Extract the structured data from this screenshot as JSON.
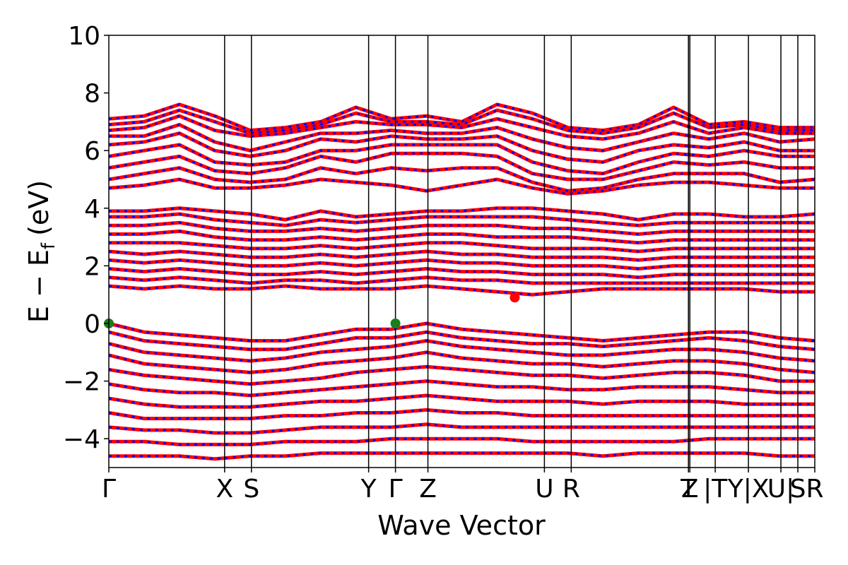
{
  "chart_data": {
    "type": "line",
    "title": "",
    "xlabel": "Wave Vector",
    "ylabel": "E  −  E",
    "ylabel_sub": "f",
    "ylabel_unit": "(eV)",
    "ylim": [
      -5,
      10
    ],
    "yticks": [
      {
        "value": -4,
        "label": "−4"
      },
      {
        "value": -2,
        "label": "−2"
      },
      {
        "value": 0,
        "label": "0"
      },
      {
        "value": 2,
        "label": "2"
      },
      {
        "value": 4,
        "label": "4"
      },
      {
        "value": 6,
        "label": "6"
      },
      {
        "value": 8,
        "label": "8"
      },
      {
        "value": 10,
        "label": "10"
      }
    ],
    "xlim": [
      0,
      1
    ],
    "kpoints": [
      {
        "label": "Γ",
        "x": 0.0
      },
      {
        "label": "X",
        "x": 0.164
      },
      {
        "label": "S",
        "x": 0.202
      },
      {
        "label": "Y",
        "x": 0.368
      },
      {
        "label": "Γ",
        "x": 0.406
      },
      {
        "label": "Z",
        "x": 0.452
      },
      {
        "label": "U",
        "x": 0.617
      },
      {
        "label": "R",
        "x": 0.655
      },
      {
        "label": "T",
        "x": 0.821
      },
      {
        "label": "Z",
        "x": 0.823
      },
      {
        "label": "|T",
        "x": 0.859
      },
      {
        "label": "Y|X",
        "x": 0.906
      },
      {
        "label": "U|",
        "x": 0.952
      },
      {
        "label": "S",
        "x": 0.976
      },
      {
        "label": "R",
        "x": 1.0
      }
    ],
    "series_colors": {
      "spin_up": "#ff0000",
      "spin_down": "#0000ff"
    },
    "markers": [
      {
        "x": 0.0,
        "y": 0.0,
        "color": "#1a7f1a"
      },
      {
        "x": 0.406,
        "y": 0.0,
        "color": "#1a7f1a"
      },
      {
        "x": 0.575,
        "y": 0.9,
        "color": "#ff0000"
      }
    ],
    "conduction_bands": [
      [
        7.1,
        7.2,
        7.6,
        7.2,
        6.7,
        6.8,
        7.0,
        7.5,
        7.1,
        7.2,
        7.0,
        7.6,
        7.3,
        6.8,
        6.7,
        6.9,
        7.5,
        6.9,
        7.0,
        6.8,
        6.8
      ],
      [
        6.9,
        7.0,
        7.4,
        7.0,
        6.6,
        6.7,
        6.9,
        7.3,
        7.0,
        7.0,
        6.9,
        7.4,
        7.1,
        6.7,
        6.6,
        6.8,
        7.3,
        6.8,
        6.9,
        6.7,
        6.7
      ],
      [
        6.7,
        6.8,
        7.2,
        6.7,
        6.5,
        6.6,
        6.8,
        7.0,
        6.9,
        6.9,
        6.8,
        7.1,
        6.8,
        6.5,
        6.4,
        6.6,
        7.0,
        6.6,
        6.8,
        6.6,
        6.6
      ],
      [
        6.5,
        6.5,
        6.9,
        6.3,
        6.0,
        6.3,
        6.6,
        6.6,
        6.7,
        6.6,
        6.6,
        6.8,
        6.4,
        6.1,
        6.0,
        6.3,
        6.6,
        6.4,
        6.6,
        6.3,
        6.4
      ],
      [
        6.2,
        6.3,
        6.6,
        6.0,
        5.8,
        6.0,
        6.4,
        6.3,
        6.5,
        6.4,
        6.4,
        6.5,
        6.0,
        5.7,
        5.6,
        6.0,
        6.2,
        6.1,
        6.3,
        6.0,
        6.0
      ],
      [
        5.8,
        6.0,
        6.2,
        5.6,
        5.5,
        5.6,
        6.0,
        6.0,
        6.2,
        6.2,
        6.2,
        6.2,
        5.6,
        5.3,
        5.2,
        5.6,
        5.9,
        5.8,
        6.0,
        5.8,
        5.8
      ],
      [
        5.4,
        5.6,
        5.8,
        5.3,
        5.2,
        5.4,
        5.8,
        5.6,
        5.9,
        5.9,
        5.9,
        5.8,
        5.2,
        5.0,
        5.0,
        5.3,
        5.6,
        5.5,
        5.6,
        5.4,
        5.4
      ],
      [
        5.0,
        5.2,
        5.4,
        5.0,
        4.9,
        5.0,
        5.4,
        5.2,
        5.4,
        5.3,
        5.4,
        5.4,
        4.9,
        4.6,
        4.7,
        5.0,
        5.2,
        5.2,
        5.2,
        4.9,
        5.0
      ],
      [
        4.7,
        4.8,
        5.0,
        4.7,
        4.7,
        4.8,
        5.0,
        4.9,
        4.8,
        4.6,
        4.8,
        5.0,
        4.7,
        4.5,
        4.6,
        4.8,
        4.9,
        4.9,
        4.8,
        4.7,
        4.7
      ]
    ],
    "mid_bands": [
      [
        3.9,
        3.9,
        4.0,
        3.9,
        3.8,
        3.6,
        3.9,
        3.7,
        3.8,
        3.9,
        3.9,
        4.0,
        4.0,
        3.9,
        3.8,
        3.6,
        3.8,
        3.8,
        3.7,
        3.7,
        3.8
      ],
      [
        3.7,
        3.7,
        3.8,
        3.6,
        3.5,
        3.4,
        3.6,
        3.5,
        3.6,
        3.7,
        3.7,
        3.7,
        3.7,
        3.6,
        3.5,
        3.4,
        3.5,
        3.5,
        3.5,
        3.5,
        3.5
      ],
      [
        3.4,
        3.4,
        3.5,
        3.3,
        3.2,
        3.2,
        3.3,
        3.2,
        3.3,
        3.4,
        3.4,
        3.4,
        3.3,
        3.3,
        3.2,
        3.1,
        3.2,
        3.2,
        3.2,
        3.2,
        3.2
      ],
      [
        3.1,
        3.1,
        3.2,
        3.0,
        2.9,
        2.9,
        3.0,
        2.9,
        3.0,
        3.1,
        3.1,
        3.0,
        3.0,
        3.0,
        2.9,
        2.8,
        2.9,
        2.9,
        2.9,
        2.9,
        2.9
      ],
      [
        2.8,
        2.8,
        2.8,
        2.7,
        2.6,
        2.6,
        2.7,
        2.6,
        2.7,
        2.8,
        2.8,
        2.7,
        2.6,
        2.6,
        2.6,
        2.5,
        2.6,
        2.6,
        2.6,
        2.6,
        2.6
      ],
      [
        2.5,
        2.4,
        2.5,
        2.4,
        2.3,
        2.3,
        2.4,
        2.3,
        2.4,
        2.5,
        2.4,
        2.4,
        2.3,
        2.3,
        2.3,
        2.2,
        2.3,
        2.3,
        2.3,
        2.3,
        2.3
      ],
      [
        2.2,
        2.1,
        2.2,
        2.1,
        2.0,
        2.0,
        2.1,
        2.0,
        2.1,
        2.2,
        2.1,
        2.1,
        2.0,
        2.0,
        2.0,
        1.9,
        2.0,
        2.0,
        2.0,
        2.0,
        2.0
      ],
      [
        1.9,
        1.8,
        1.9,
        1.8,
        1.7,
        1.7,
        1.8,
        1.7,
        1.8,
        1.9,
        1.8,
        1.8,
        1.7,
        1.7,
        1.7,
        1.6,
        1.7,
        1.7,
        1.7,
        1.7,
        1.7
      ],
      [
        1.6,
        1.5,
        1.6,
        1.5,
        1.4,
        1.5,
        1.5,
        1.4,
        1.5,
        1.6,
        1.5,
        1.5,
        1.4,
        1.4,
        1.4,
        1.4,
        1.4,
        1.4,
        1.4,
        1.4,
        1.4
      ],
      [
        1.3,
        1.2,
        1.3,
        1.2,
        1.2,
        1.3,
        1.2,
        1.2,
        1.2,
        1.3,
        1.2,
        1.1,
        1.0,
        1.1,
        1.2,
        1.2,
        1.2,
        1.2,
        1.2,
        1.1,
        1.1
      ]
    ],
    "valence_bands": [
      [
        0.0,
        -0.3,
        -0.4,
        -0.5,
        -0.6,
        -0.6,
        -0.4,
        -0.2,
        -0.2,
        0.0,
        -0.2,
        -0.3,
        -0.4,
        -0.5,
        -0.6,
        -0.5,
        -0.4,
        -0.3,
        -0.3,
        -0.5,
        -0.6
      ],
      [
        -0.3,
        -0.6,
        -0.7,
        -0.8,
        -0.9,
        -0.9,
        -0.7,
        -0.5,
        -0.5,
        -0.3,
        -0.5,
        -0.6,
        -0.7,
        -0.7,
        -0.8,
        -0.7,
        -0.6,
        -0.5,
        -0.6,
        -0.8,
        -0.9
      ],
      [
        -0.7,
        -1.0,
        -1.1,
        -1.2,
        -1.3,
        -1.2,
        -1.0,
        -0.9,
        -0.8,
        -0.6,
        -0.8,
        -0.9,
        -1.0,
        -1.1,
        -1.1,
        -1.0,
        -0.9,
        -0.9,
        -1.0,
        -1.2,
        -1.3
      ],
      [
        -1.1,
        -1.4,
        -1.5,
        -1.6,
        -1.7,
        -1.6,
        -1.4,
        -1.3,
        -1.2,
        -1.0,
        -1.2,
        -1.3,
        -1.4,
        -1.4,
        -1.5,
        -1.4,
        -1.3,
        -1.3,
        -1.4,
        -1.6,
        -1.7
      ],
      [
        -1.6,
        -1.8,
        -1.9,
        -2.0,
        -2.1,
        -2.0,
        -1.9,
        -1.7,
        -1.6,
        -1.5,
        -1.6,
        -1.7,
        -1.8,
        -1.8,
        -1.9,
        -1.8,
        -1.7,
        -1.7,
        -1.8,
        -2.0,
        -2.0
      ],
      [
        -2.1,
        -2.3,
        -2.4,
        -2.4,
        -2.5,
        -2.4,
        -2.3,
        -2.2,
        -2.1,
        -2.0,
        -2.1,
        -2.2,
        -2.2,
        -2.3,
        -2.3,
        -2.2,
        -2.2,
        -2.2,
        -2.3,
        -2.4,
        -2.4
      ],
      [
        -2.6,
        -2.8,
        -2.9,
        -2.9,
        -2.9,
        -2.8,
        -2.7,
        -2.7,
        -2.6,
        -2.5,
        -2.6,
        -2.7,
        -2.7,
        -2.7,
        -2.8,
        -2.7,
        -2.7,
        -2.7,
        -2.8,
        -2.8,
        -2.8
      ],
      [
        -3.1,
        -3.3,
        -3.3,
        -3.3,
        -3.3,
        -3.2,
        -3.2,
        -3.1,
        -3.1,
        -3.0,
        -3.1,
        -3.1,
        -3.2,
        -3.2,
        -3.2,
        -3.2,
        -3.2,
        -3.2,
        -3.2,
        -3.2,
        -3.2
      ],
      [
        -3.6,
        -3.7,
        -3.7,
        -3.8,
        -3.8,
        -3.7,
        -3.6,
        -3.6,
        -3.6,
        -3.5,
        -3.6,
        -3.6,
        -3.6,
        -3.6,
        -3.6,
        -3.6,
        -3.6,
        -3.6,
        -3.6,
        -3.6,
        -3.6
      ],
      [
        -4.1,
        -4.1,
        -4.2,
        -4.2,
        -4.2,
        -4.1,
        -4.1,
        -4.1,
        -4.0,
        -4.0,
        -4.0,
        -4.0,
        -4.1,
        -4.1,
        -4.1,
        -4.1,
        -4.1,
        -4.0,
        -4.0,
        -4.0,
        -4.0
      ],
      [
        -4.6,
        -4.6,
        -4.6,
        -4.7,
        -4.6,
        -4.6,
        -4.5,
        -4.5,
        -4.5,
        -4.5,
        -4.5,
        -4.5,
        -4.5,
        -4.5,
        -4.6,
        -4.5,
        -4.5,
        -4.5,
        -4.5,
        -4.6,
        -4.6
      ]
    ]
  }
}
